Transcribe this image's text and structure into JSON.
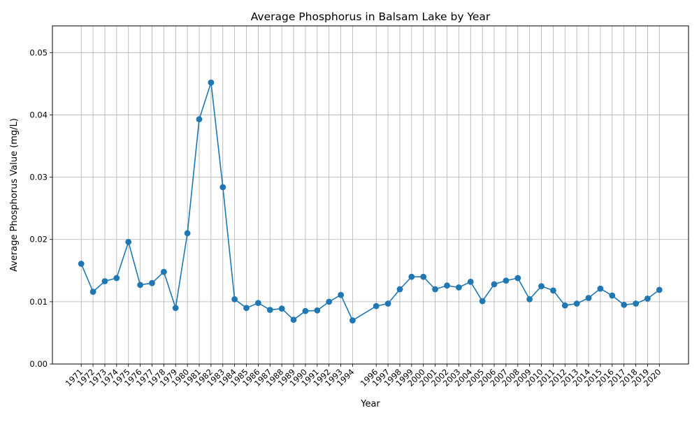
{
  "chart_data": {
    "type": "line",
    "title": "Average Phosphorus in Balsam Lake by Year",
    "xlabel": "Year",
    "ylabel": "Average Phosphorus Value (mg/L)",
    "ylim": [
      0,
      0.0543
    ],
    "yticks": [
      "0.00",
      "0.01",
      "0.02",
      "0.03",
      "0.04",
      "0.05"
    ],
    "ytick_values": [
      0,
      0.01,
      0.02,
      0.03,
      0.04,
      0.05
    ],
    "grid": true,
    "legend": "none",
    "line_color": "#1f77b4",
    "x": [
      "1971",
      "1972",
      "1973",
      "1974",
      "1975",
      "1976",
      "1977",
      "1978",
      "1979",
      "1980",
      "1981",
      "1982",
      "1983",
      "1984",
      "1985",
      "1986",
      "1987",
      "1988",
      "1989",
      "1990",
      "1991",
      "1992",
      "1993",
      "1994",
      "1996",
      "1997",
      "1998",
      "1999",
      "2000",
      "2001",
      "2002",
      "2003",
      "2004",
      "2005",
      "2006",
      "2007",
      "2008",
      "2009",
      "2010",
      "2011",
      "2012",
      "2013",
      "2014",
      "2015",
      "2016",
      "2017",
      "2018",
      "2019",
      "2020"
    ],
    "series": [
      {
        "values": [
          0.0161,
          0.0116,
          0.0133,
          0.0138,
          0.0196,
          0.0127,
          0.013,
          0.0148,
          0.009,
          0.021,
          0.0393,
          0.0452,
          0.0284,
          0.0104,
          0.009,
          0.0098,
          0.0087,
          0.0089,
          0.0071,
          0.0085,
          0.0086,
          0.01,
          0.0111,
          0.007,
          0.0093,
          0.0097,
          0.012,
          0.014,
          0.014,
          0.012,
          0.0126,
          0.0123,
          0.0132,
          0.0101,
          0.0128,
          0.0134,
          0.0138,
          0.0104,
          0.0125,
          0.0118,
          0.0094,
          0.0097,
          0.0106,
          0.0121,
          0.011,
          0.0095,
          0.0097,
          0.0105,
          0.0119
        ]
      }
    ]
  }
}
